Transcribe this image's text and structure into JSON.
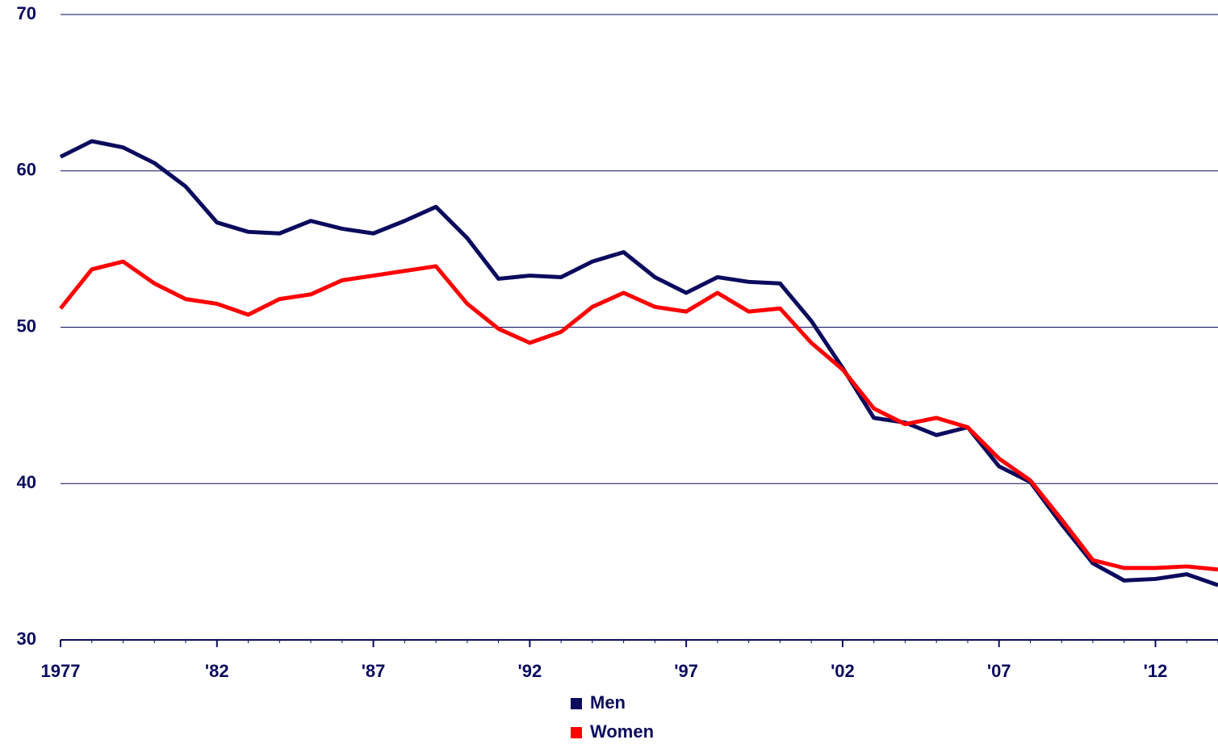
{
  "chart_data": {
    "type": "line",
    "x": [
      1977,
      1978,
      1979,
      1980,
      1981,
      1982,
      1983,
      1984,
      1985,
      1986,
      1987,
      1988,
      1989,
      1990,
      1991,
      1992,
      1993,
      1994,
      1995,
      1996,
      1997,
      1998,
      1999,
      2000,
      2001,
      2002,
      2003,
      2004,
      2005,
      2006,
      2007,
      2008,
      2009,
      2010,
      2011,
      2012,
      2013,
      2014
    ],
    "series": [
      {
        "name": "Men",
        "color": "#0b0b5e",
        "values": [
          60.9,
          61.9,
          61.5,
          60.5,
          59.0,
          56.7,
          56.1,
          56.0,
          56.8,
          56.3,
          56.0,
          56.8,
          57.7,
          55.7,
          53.1,
          53.3,
          53.2,
          54.2,
          54.8,
          53.2,
          52.2,
          53.2,
          52.9,
          52.8,
          50.4,
          47.4,
          44.2,
          43.9,
          43.1,
          43.6,
          41.1,
          40.1,
          37.4,
          34.9,
          33.8,
          33.9,
          34.2,
          33.5
        ]
      },
      {
        "name": "Women",
        "color": "#ff0000",
        "values": [
          51.2,
          53.7,
          54.2,
          52.8,
          51.8,
          51.5,
          50.8,
          51.8,
          52.1,
          53.0,
          53.3,
          53.6,
          53.9,
          51.5,
          49.9,
          49.0,
          49.7,
          51.3,
          52.2,
          51.3,
          51.0,
          52.2,
          51.0,
          51.2,
          49.0,
          47.3,
          44.8,
          43.8,
          44.2,
          43.6,
          41.6,
          40.2,
          37.7,
          35.1,
          34.6,
          34.6,
          34.7,
          34.5
        ]
      }
    ],
    "xlim": [
      1977,
      2014
    ],
    "xticks": [
      1977,
      {
        "value": 1982,
        "label": "'82"
      },
      {
        "value": 1987,
        "label": "'87"
      },
      {
        "value": 1992,
        "label": "'92"
      },
      {
        "value": 1997,
        "label": "'97"
      },
      {
        "value": 2002,
        "label": "'02"
      },
      {
        "value": 2007,
        "label": "'07"
      },
      {
        "value": 2012,
        "label": "'12"
      }
    ],
    "ylim": [
      30,
      70
    ],
    "yticks": [
      30,
      40,
      50,
      60,
      70
    ],
    "grid": true,
    "legend": "bottom"
  }
}
